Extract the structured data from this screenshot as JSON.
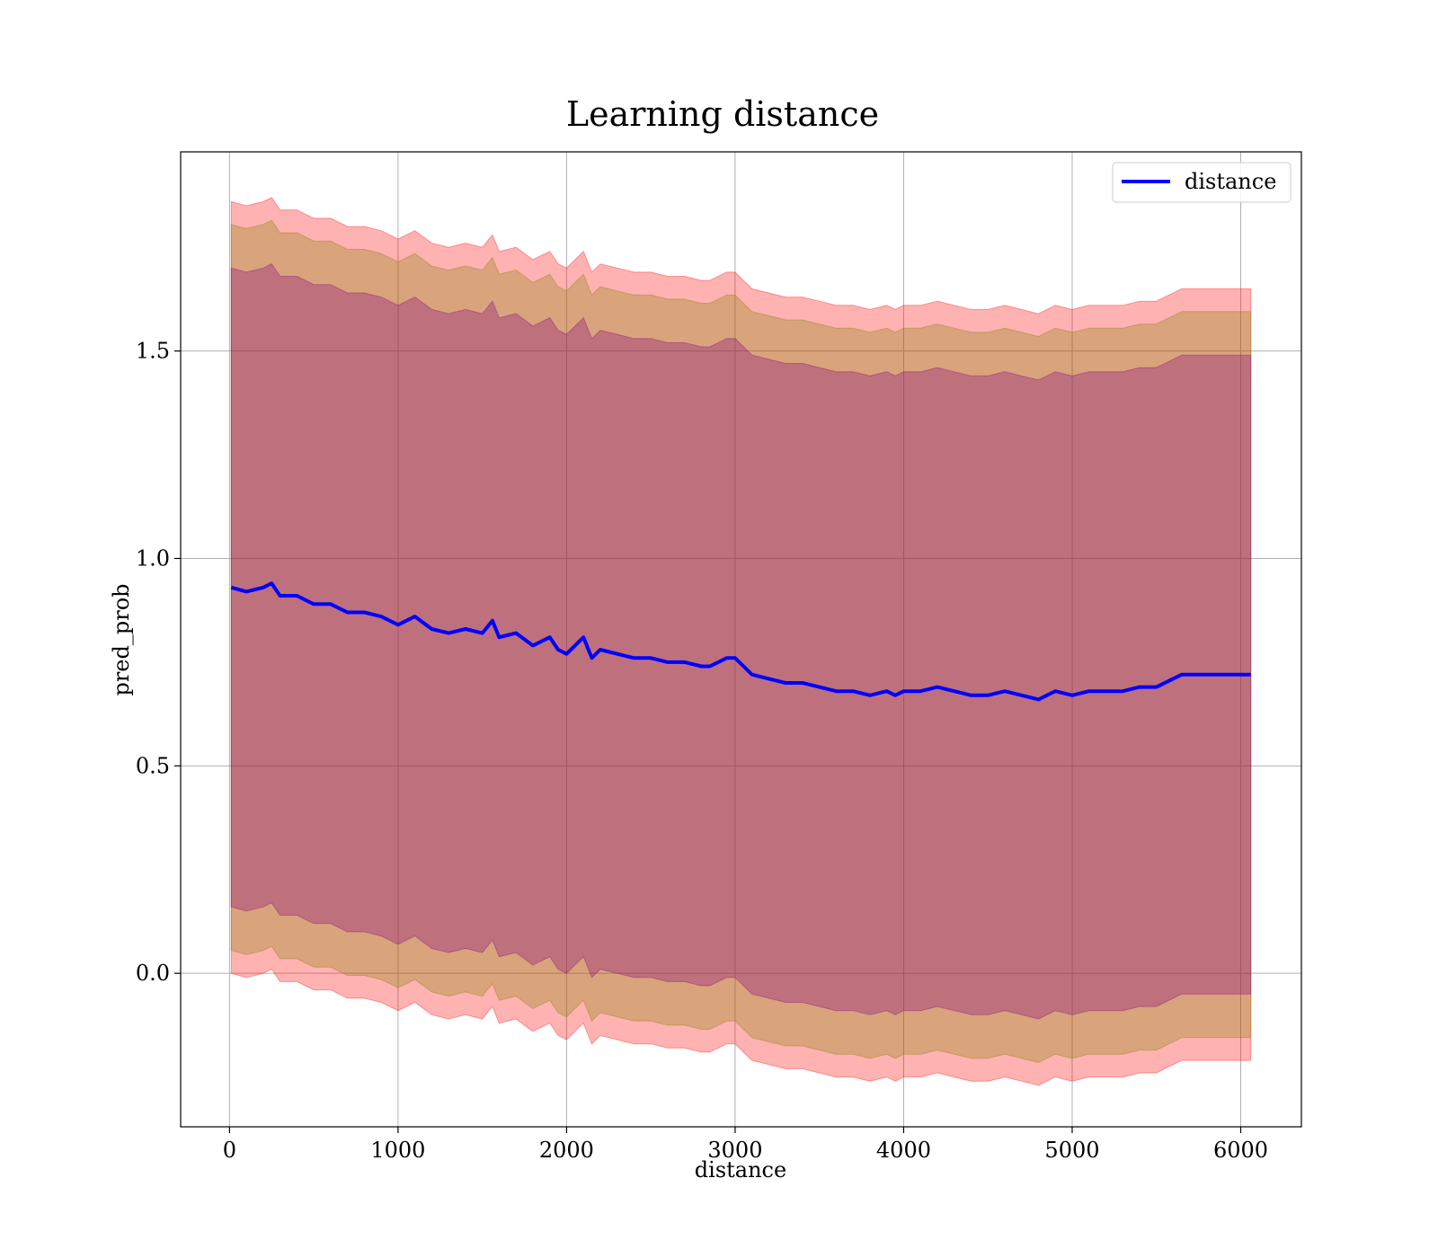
{
  "chart_data": {
    "type": "line",
    "title": "Learning distance",
    "xlabel": "distance",
    "ylabel": "pred_prob",
    "xlim": [
      -290,
      6360
    ],
    "ylim": [
      -0.37,
      1.98
    ],
    "x_ticks": [
      0,
      1000,
      2000,
      3000,
      4000,
      5000,
      6000
    ],
    "x_tick_labels": [
      "0",
      "1000",
      "2000",
      "3000",
      "4000",
      "5000",
      "6000"
    ],
    "y_ticks": [
      0.0,
      0.5,
      1.0,
      1.5
    ],
    "y_tick_labels": [
      "0.0",
      "0.5",
      "1.0",
      "1.5"
    ],
    "grid": true,
    "legend": {
      "position": "top-right",
      "entries": [
        "distance"
      ]
    },
    "colors": {
      "line": "#0000ff",
      "band_outer": "#ff0000",
      "band_mid": "#808000",
      "band_inner": "#800080"
    },
    "series": [
      {
        "name": "distance",
        "x": [
          10,
          100,
          200,
          250,
          300,
          400,
          500,
          600,
          700,
          800,
          900,
          1000,
          1100,
          1200,
          1300,
          1400,
          1500,
          1560,
          1600,
          1700,
          1800,
          1900,
          1950,
          2000,
          2050,
          2100,
          2150,
          2200,
          2300,
          2400,
          2500,
          2600,
          2700,
          2800,
          2850,
          2900,
          2950,
          3000,
          3050,
          3100,
          3200,
          3300,
          3400,
          3500,
          3600,
          3700,
          3800,
          3900,
          3950,
          4000,
          4100,
          4200,
          4300,
          4400,
          4450,
          4500,
          4600,
          4700,
          4800,
          4900,
          5000,
          5100,
          5200,
          5300,
          5400,
          5500,
          5650,
          6060
        ],
        "y": [
          0.93,
          0.92,
          0.93,
          0.94,
          0.91,
          0.91,
          0.89,
          0.89,
          0.87,
          0.87,
          0.86,
          0.84,
          0.86,
          0.83,
          0.82,
          0.83,
          0.82,
          0.85,
          0.81,
          0.82,
          0.79,
          0.81,
          0.78,
          0.77,
          0.79,
          0.81,
          0.76,
          0.78,
          0.77,
          0.76,
          0.76,
          0.75,
          0.75,
          0.74,
          0.74,
          0.75,
          0.76,
          0.76,
          0.74,
          0.72,
          0.71,
          0.7,
          0.7,
          0.69,
          0.68,
          0.68,
          0.67,
          0.68,
          0.67,
          0.68,
          0.68,
          0.69,
          0.68,
          0.67,
          0.67,
          0.67,
          0.68,
          0.67,
          0.66,
          0.68,
          0.67,
          0.68,
          0.68,
          0.68,
          0.69,
          0.69,
          0.72,
          0.72
        ]
      }
    ],
    "bands": [
      {
        "color": "outer",
        "offset": [
          0.93,
          0.93,
          0.93,
          0.93,
          0.93,
          0.93,
          0.93,
          0.93,
          0.93,
          0.93,
          0.93,
          0.93,
          0.93,
          0.93,
          0.93,
          0.93,
          0.93,
          0.93,
          0.93,
          0.93,
          0.93,
          0.93,
          0.93,
          0.93,
          0.93,
          0.93,
          0.93,
          0.93,
          0.93,
          0.93,
          0.93,
          0.93,
          0.93,
          0.93,
          0.93,
          0.93,
          0.93,
          0.93,
          0.93,
          0.93,
          0.93,
          0.93,
          0.93,
          0.93,
          0.93,
          0.93,
          0.93,
          0.93,
          0.93,
          0.93,
          0.93,
          0.93,
          0.93,
          0.93,
          0.93,
          0.93,
          0.93,
          0.93,
          0.93,
          0.93,
          0.93,
          0.93,
          0.93,
          0.93,
          0.93,
          0.93,
          0.93,
          0.93
        ]
      },
      {
        "color": "mid",
        "offset": [
          0.875,
          0.875,
          0.875,
          0.875,
          0.875,
          0.875,
          0.875,
          0.875,
          0.875,
          0.875,
          0.875,
          0.875,
          0.875,
          0.875,
          0.875,
          0.875,
          0.875,
          0.875,
          0.875,
          0.875,
          0.875,
          0.875,
          0.875,
          0.875,
          0.875,
          0.875,
          0.875,
          0.875,
          0.875,
          0.875,
          0.875,
          0.875,
          0.875,
          0.875,
          0.875,
          0.875,
          0.875,
          0.875,
          0.875,
          0.875,
          0.875,
          0.875,
          0.875,
          0.875,
          0.875,
          0.875,
          0.875,
          0.875,
          0.875,
          0.875,
          0.875,
          0.875,
          0.875,
          0.875,
          0.875,
          0.875,
          0.875,
          0.875,
          0.875,
          0.875,
          0.875,
          0.875,
          0.875,
          0.875,
          0.875,
          0.875,
          0.875,
          0.875
        ]
      },
      {
        "color": "inner",
        "offset": [
          0.77,
          0.77,
          0.77,
          0.77,
          0.77,
          0.77,
          0.77,
          0.77,
          0.77,
          0.77,
          0.77,
          0.77,
          0.77,
          0.77,
          0.77,
          0.77,
          0.77,
          0.77,
          0.77,
          0.77,
          0.77,
          0.77,
          0.77,
          0.77,
          0.77,
          0.77,
          0.77,
          0.77,
          0.77,
          0.77,
          0.77,
          0.77,
          0.77,
          0.77,
          0.77,
          0.77,
          0.77,
          0.77,
          0.77,
          0.77,
          0.77,
          0.77,
          0.77,
          0.77,
          0.77,
          0.77,
          0.77,
          0.77,
          0.77,
          0.77,
          0.77,
          0.77,
          0.77,
          0.77,
          0.77,
          0.77,
          0.77,
          0.77,
          0.77,
          0.77,
          0.77,
          0.77,
          0.77,
          0.77,
          0.77,
          0.77,
          0.77,
          0.77
        ]
      }
    ]
  }
}
